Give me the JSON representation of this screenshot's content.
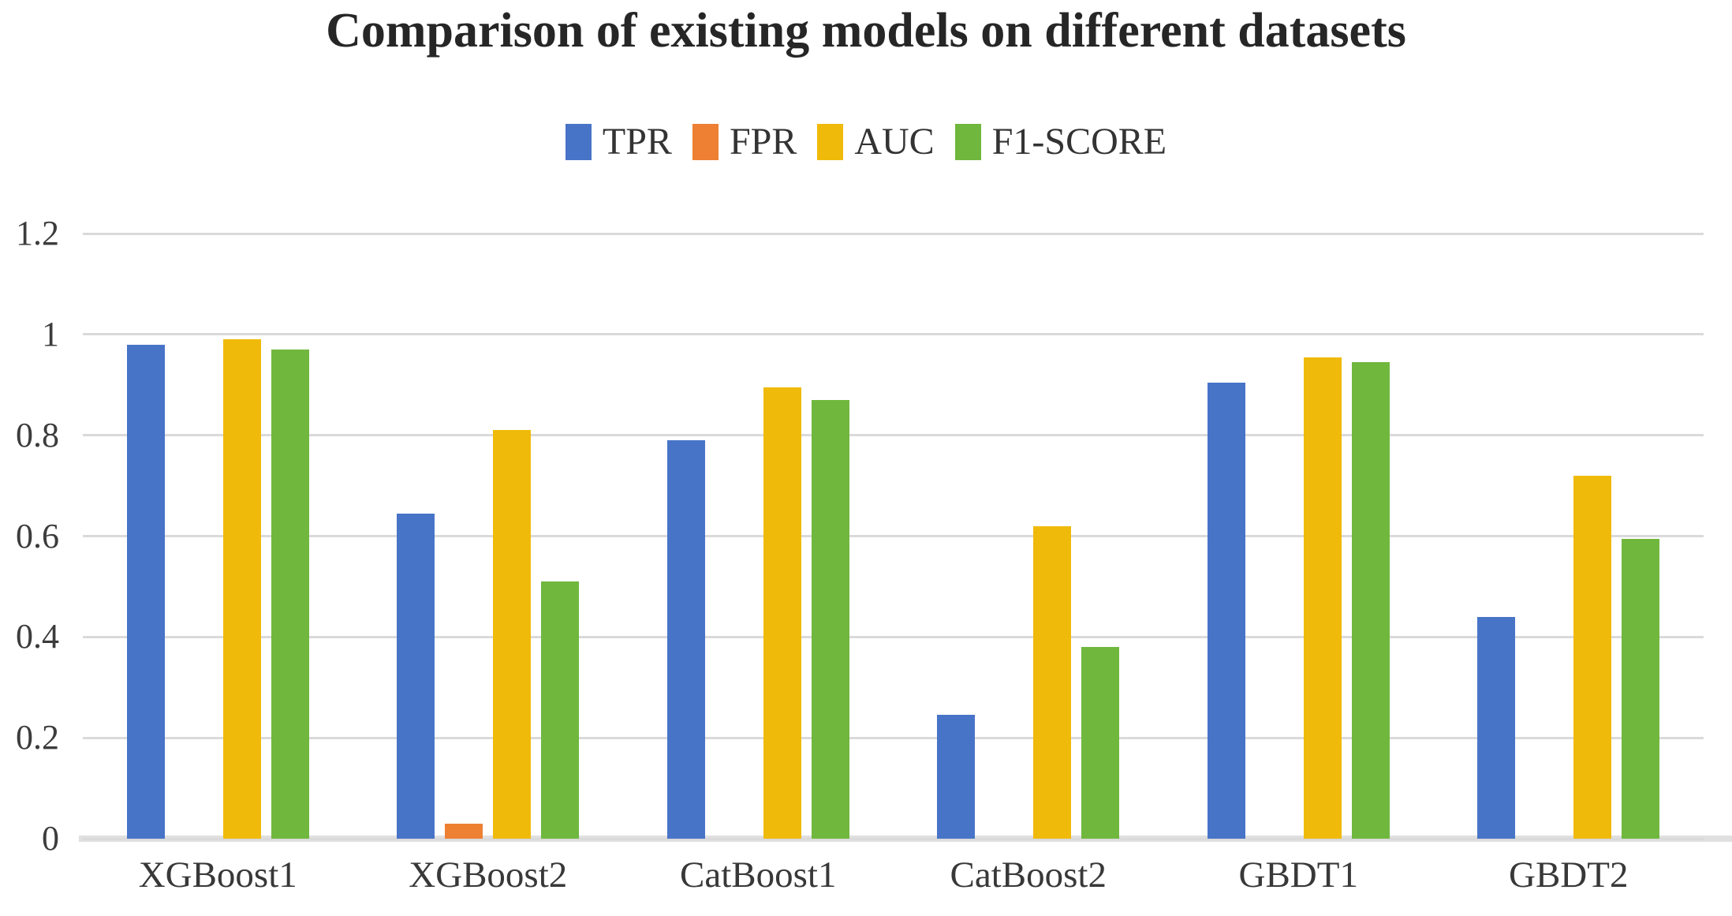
{
  "title": "Comparison of existing models on different datasets",
  "y_axis": {
    "tick_labels": [
      "0",
      "0.2",
      "0.4",
      "0.6",
      "0.8",
      "1",
      "1.2"
    ]
  },
  "colors": {
    "gridline": "#dadada",
    "baseline": "#e0e0e0",
    "title_text": "#262626",
    "axis_text": "#3c3c3c"
  },
  "chart_data": {
    "type": "bar",
    "title": "Comparison of existing models on different datasets",
    "categories": [
      "XGBoost1",
      "XGBoost2",
      "CatBoost1",
      "CatBoost2",
      "GBDT1",
      "GBDT2"
    ],
    "series": [
      {
        "name": "TPR",
        "color": "#4874c8",
        "values": [
          0.98,
          0.645,
          0.79,
          0.245,
          0.905,
          0.44
        ]
      },
      {
        "name": "FPR",
        "color": "#ed8032",
        "values": [
          0,
          0.03,
          0,
          0,
          0,
          0
        ]
      },
      {
        "name": "AUC",
        "color": "#f0ba0a",
        "values": [
          0.99,
          0.81,
          0.895,
          0.62,
          0.955,
          0.72
        ]
      },
      {
        "name": "F1-SCORE",
        "color": "#70b73e",
        "values": [
          0.97,
          0.51,
          0.87,
          0.38,
          0.945,
          0.595
        ]
      }
    ],
    "xlabel": "",
    "ylabel": "",
    "ylim": [
      0,
      1.2
    ],
    "yticks": [
      0,
      0.2,
      0.4,
      0.6,
      0.8,
      1,
      1.2
    ],
    "grid": true,
    "legend_position": "top-center"
  }
}
